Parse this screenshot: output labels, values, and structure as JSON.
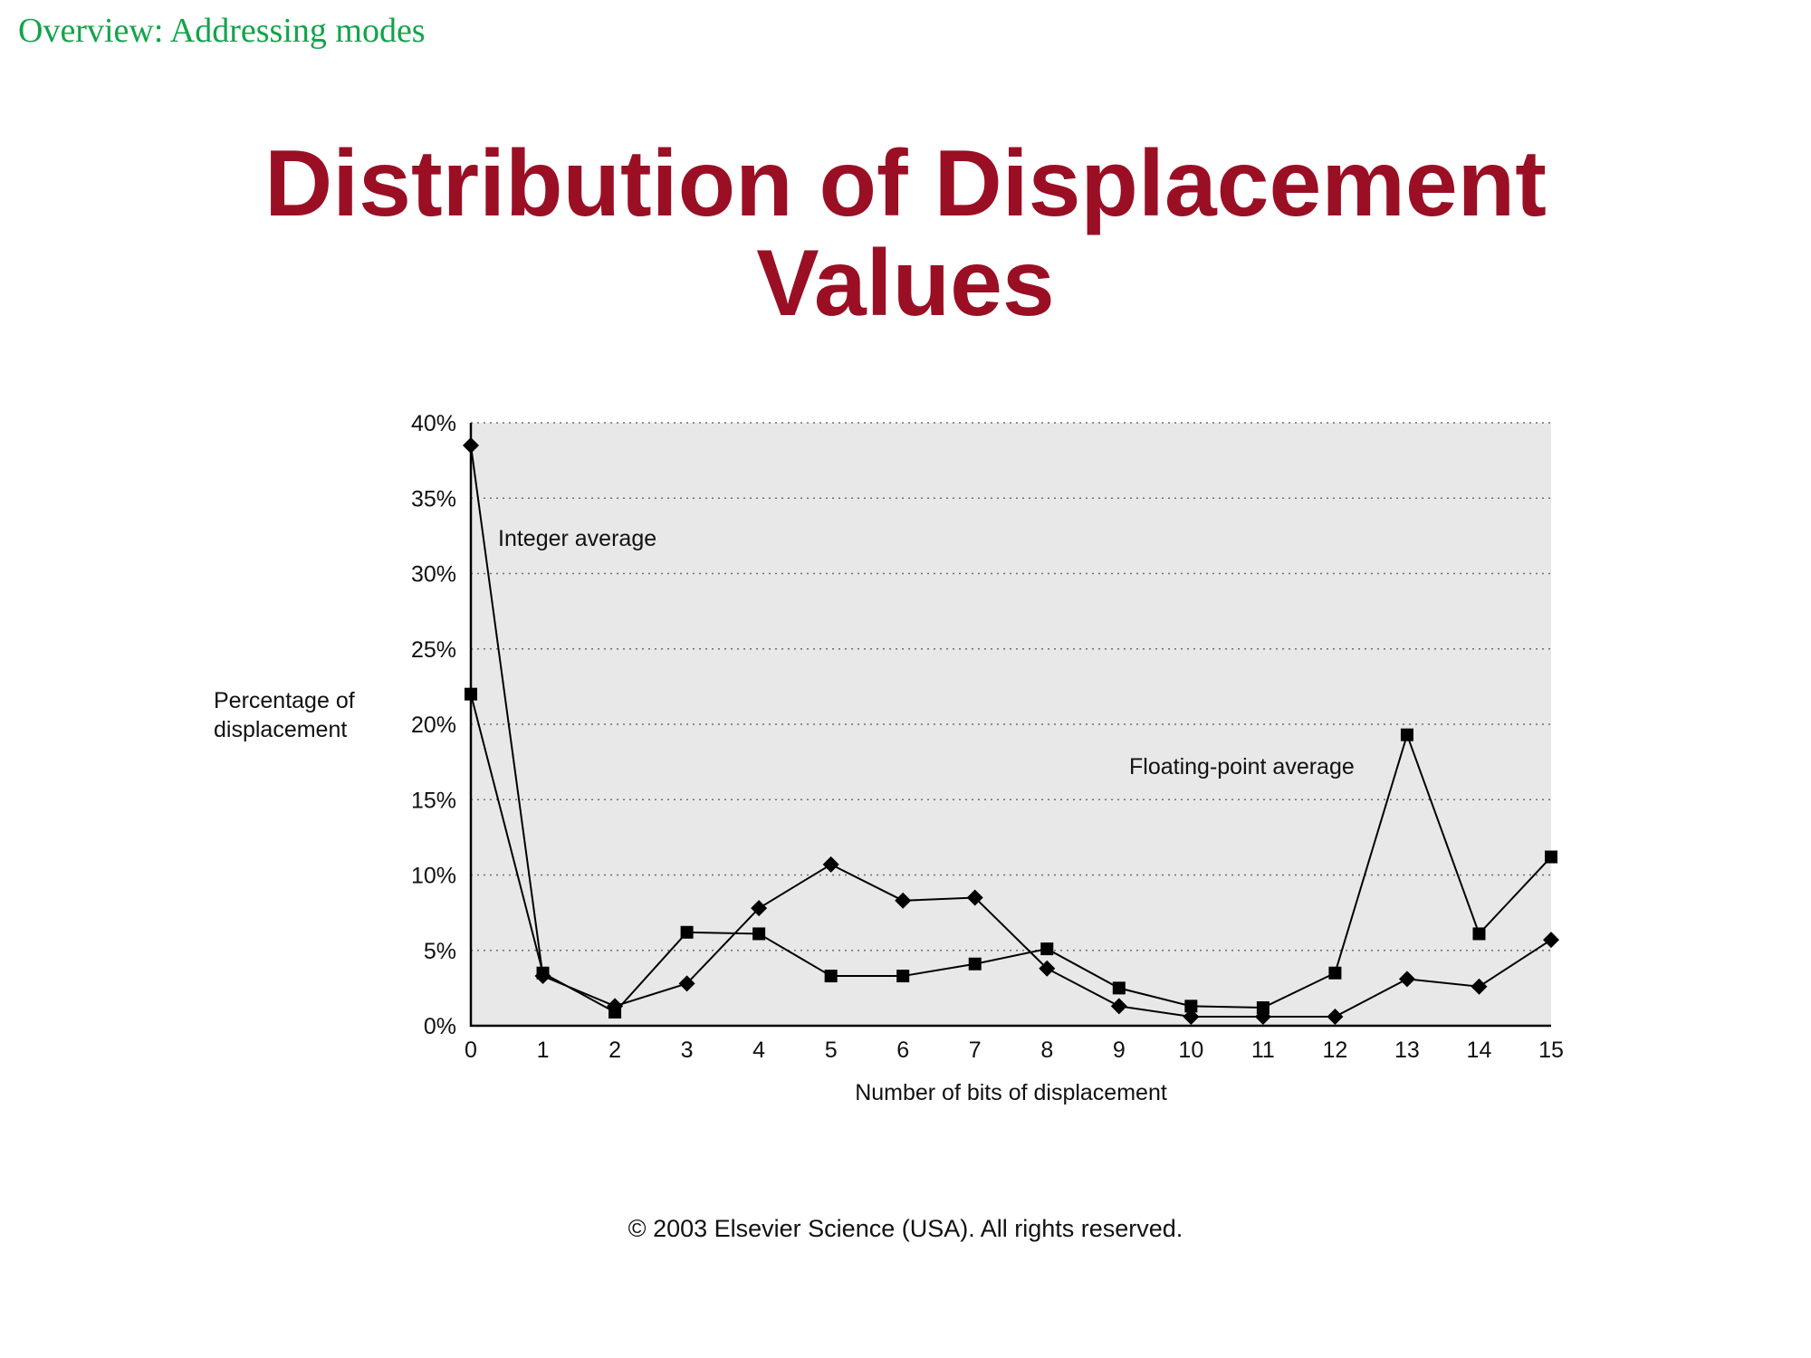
{
  "header": {
    "section": "Overview: Addressing modes",
    "title_line1": "Distribution of Displacement",
    "title_line2": "Values"
  },
  "footer": {
    "copyright": "© 2003 Elsevier Science (USA). All rights reserved."
  },
  "colors": {
    "section": "#12a44a",
    "title": "#9a0f24",
    "plot_background": "#e8e8e8",
    "series": "#000000"
  },
  "chart_data": {
    "type": "line",
    "xlabel": "Number of bits of displacement",
    "ylabel_lines": [
      "Percentage of",
      "displacement"
    ],
    "x": [
      0,
      1,
      2,
      3,
      4,
      5,
      6,
      7,
      8,
      9,
      10,
      11,
      12,
      13,
      14,
      15
    ],
    "xlim": [
      0,
      15
    ],
    "ylim": [
      0,
      40
    ],
    "yticks": [
      0,
      5,
      10,
      15,
      20,
      25,
      30,
      35,
      40
    ],
    "ytick_labels": [
      "0%",
      "5%",
      "10%",
      "15%",
      "20%",
      "25%",
      "30%",
      "35%",
      "40%"
    ],
    "grid": "horizontal-dotted",
    "series": [
      {
        "name": "Integer average",
        "marker": "diamond",
        "values": [
          38.5,
          3.3,
          1.3,
          2.8,
          7.8,
          10.7,
          8.3,
          8.5,
          3.8,
          1.3,
          0.6,
          0.6,
          0.6,
          3.1,
          2.6,
          5.7
        ]
      },
      {
        "name": "Floating-point average",
        "marker": "square",
        "values": [
          22.0,
          3.5,
          0.9,
          6.2,
          6.1,
          3.3,
          3.3,
          4.1,
          5.1,
          2.5,
          1.3,
          1.2,
          3.5,
          19.3,
          6.1,
          11.2
        ]
      }
    ]
  }
}
